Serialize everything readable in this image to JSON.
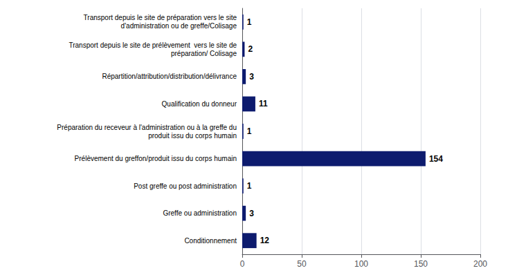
{
  "chart_data": {
    "type": "bar",
    "orientation": "horizontal",
    "categories": [
      "Transport depuis le site de préparation vers le site\nd'administration ou de greffe/Colisage",
      "Transport depuis le site de prélèvement  vers le site de\npréparation/ Colisage",
      "Répartition/attribution/distribution/délivrance",
      "Qualification du donneur",
      "Préparation du receveur à l'administration ou à la greffe du\nproduit issu du corps humain",
      "Prélèvement du greffon/produit issu du corps humain",
      "Post greffe ou post administration",
      "Greffe ou administration",
      "Conditionnement"
    ],
    "values": [
      1,
      2,
      3,
      11,
      1,
      154,
      1,
      3,
      12
    ],
    "color": "#0D1B6E",
    "xlim": [
      0,
      200
    ],
    "xticks": [
      0,
      50,
      100,
      150,
      200
    ],
    "grid": true,
    "data_labels": true
  }
}
